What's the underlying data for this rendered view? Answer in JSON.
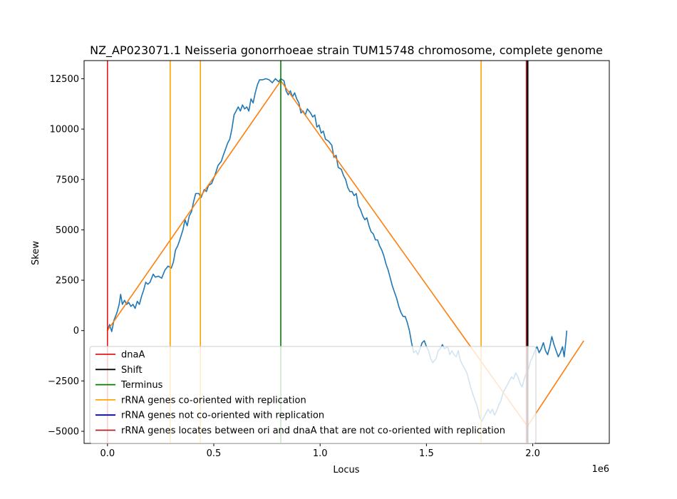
{
  "chart_data": {
    "type": "line",
    "title": "NZ_AP023071.1 Neisseria gonorrhoeae strain TUM15748 chromosome, complete genome",
    "xlabel": "Locus",
    "ylabel": "Skew",
    "x_offset_label": "1e6",
    "xlim": [
      -110000,
      2360000
    ],
    "ylim": [
      -5600,
      13400
    ],
    "x_ticks": [
      0,
      500000,
      1000000,
      1500000,
      2000000
    ],
    "x_tick_labels": [
      "0.0",
      "0.5",
      "1.0",
      "1.5",
      "2.0"
    ],
    "y_ticks": [
      -5000,
      -2500,
      0,
      2500,
      5000,
      7500,
      10000,
      12500
    ],
    "y_tick_labels": [
      "−5000",
      "−2500",
      "0",
      "2500",
      "5000",
      "7500",
      "10000",
      "12500"
    ],
    "grid": false,
    "legend_position": "lower-left",
    "colors": {
      "skew": "#1f77b4",
      "fit": "#ff7f0e",
      "dnaA": "#e41a1c",
      "shift": "#000000",
      "terminus": "#008000",
      "rrna_co": "#ffa500",
      "rrna_not_co": "#0000cd",
      "rrna_between": "#b22222"
    },
    "series": [
      {
        "key": "skew",
        "points": [
          [
            0,
            0
          ],
          [
            10000,
            300
          ],
          [
            20000,
            -50
          ],
          [
            30000,
            500
          ],
          [
            45000,
            900
          ],
          [
            55000,
            1300
          ],
          [
            62000,
            1800
          ],
          [
            70000,
            1300
          ],
          [
            80000,
            1500
          ],
          [
            90000,
            1300
          ],
          [
            100000,
            1400
          ],
          [
            110000,
            1200
          ],
          [
            120000,
            1300
          ],
          [
            130000,
            1100
          ],
          [
            140000,
            1450
          ],
          [
            150000,
            1300
          ],
          [
            160000,
            1700
          ],
          [
            170000,
            2000
          ],
          [
            180000,
            2400
          ],
          [
            190000,
            2300
          ],
          [
            200000,
            2400
          ],
          [
            215000,
            2800
          ],
          [
            225000,
            2650
          ],
          [
            240000,
            2700
          ],
          [
            255000,
            2600
          ],
          [
            270000,
            3000
          ],
          [
            285000,
            3200
          ],
          [
            300000,
            3100
          ],
          [
            310000,
            3400
          ],
          [
            320000,
            4000
          ],
          [
            330000,
            4200
          ],
          [
            340000,
            4500
          ],
          [
            355000,
            5000
          ],
          [
            365000,
            5500
          ],
          [
            375000,
            5200
          ],
          [
            385000,
            5700
          ],
          [
            395000,
            5900
          ],
          [
            405000,
            6400
          ],
          [
            415000,
            6800
          ],
          [
            430000,
            6800
          ],
          [
            440000,
            6600
          ],
          [
            455000,
            7000
          ],
          [
            465000,
            6900
          ],
          [
            475000,
            7200
          ],
          [
            490000,
            7300
          ],
          [
            505000,
            7700
          ],
          [
            520000,
            8200
          ],
          [
            535000,
            8400
          ],
          [
            545000,
            8700
          ],
          [
            555000,
            9000
          ],
          [
            565000,
            9300
          ],
          [
            575000,
            9500
          ],
          [
            585000,
            10000
          ],
          [
            595000,
            10700
          ],
          [
            605000,
            10900
          ],
          [
            615000,
            11100
          ],
          [
            625000,
            10900
          ],
          [
            635000,
            11200
          ],
          [
            645000,
            11000
          ],
          [
            655000,
            11100
          ],
          [
            665000,
            10900
          ],
          [
            675000,
            11500
          ],
          [
            685000,
            11300
          ],
          [
            695000,
            11800
          ],
          [
            705000,
            12200
          ],
          [
            715000,
            12450
          ],
          [
            730000,
            12450
          ],
          [
            745000,
            12500
          ],
          [
            760000,
            12450
          ],
          [
            775000,
            12300
          ],
          [
            790000,
            12500
          ],
          [
            805000,
            12350
          ],
          [
            815000,
            12500
          ],
          [
            830000,
            12400
          ],
          [
            840000,
            11900
          ],
          [
            850000,
            11700
          ],
          [
            860000,
            11900
          ],
          [
            870000,
            11600
          ],
          [
            880000,
            11800
          ],
          [
            890000,
            11500
          ],
          [
            900000,
            11300
          ],
          [
            910000,
            10800
          ],
          [
            920000,
            10900
          ],
          [
            930000,
            10700
          ],
          [
            940000,
            11000
          ],
          [
            955000,
            10800
          ],
          [
            965000,
            10600
          ],
          [
            975000,
            10700
          ],
          [
            985000,
            10100
          ],
          [
            995000,
            10200
          ],
          [
            1005000,
            9800
          ],
          [
            1015000,
            9900
          ],
          [
            1025000,
            9500
          ],
          [
            1040000,
            9400
          ],
          [
            1055000,
            9200
          ],
          [
            1065000,
            8600
          ],
          [
            1075000,
            8700
          ],
          [
            1085000,
            8100
          ],
          [
            1100000,
            8000
          ],
          [
            1110000,
            7700
          ],
          [
            1120000,
            7500
          ],
          [
            1130000,
            7100
          ],
          [
            1140000,
            6900
          ],
          [
            1150000,
            6900
          ],
          [
            1160000,
            6700
          ],
          [
            1170000,
            6800
          ],
          [
            1180000,
            6200
          ],
          [
            1190000,
            6000
          ],
          [
            1200000,
            5700
          ],
          [
            1210000,
            5500
          ],
          [
            1220000,
            5600
          ],
          [
            1230000,
            5200
          ],
          [
            1240000,
            4900
          ],
          [
            1250000,
            4800
          ],
          [
            1260000,
            4500
          ],
          [
            1270000,
            4500
          ],
          [
            1280000,
            4200
          ],
          [
            1290000,
            4000
          ],
          [
            1300000,
            3700
          ],
          [
            1310000,
            3300
          ],
          [
            1320000,
            3000
          ],
          [
            1330000,
            2600
          ],
          [
            1340000,
            2200
          ],
          [
            1350000,
            1900
          ],
          [
            1360000,
            1600
          ],
          [
            1370000,
            1200
          ],
          [
            1380000,
            900
          ],
          [
            1390000,
            700
          ],
          [
            1400000,
            700
          ],
          [
            1410000,
            400
          ],
          [
            1420000,
            0
          ],
          [
            1430000,
            -600
          ],
          [
            1440000,
            -1100
          ],
          [
            1450000,
            -1000
          ],
          [
            1460000,
            -1200
          ],
          [
            1470000,
            -900
          ],
          [
            1480000,
            -600
          ],
          [
            1490000,
            -500
          ],
          [
            1500000,
            -800
          ],
          [
            1510000,
            -1000
          ],
          [
            1520000,
            -1400
          ],
          [
            1530000,
            -1600
          ],
          [
            1545000,
            -1400
          ],
          [
            1555000,
            -1000
          ],
          [
            1565000,
            -900
          ],
          [
            1575000,
            -700
          ],
          [
            1585000,
            -900
          ],
          [
            1600000,
            -800
          ],
          [
            1610000,
            -1200
          ],
          [
            1620000,
            -1000
          ],
          [
            1630000,
            -1200
          ],
          [
            1640000,
            -1300
          ],
          [
            1650000,
            -1000
          ],
          [
            1660000,
            -1500
          ],
          [
            1670000,
            -1700
          ],
          [
            1680000,
            -1900
          ],
          [
            1690000,
            -2100
          ],
          [
            1700000,
            -2500
          ],
          [
            1710000,
            -2900
          ],
          [
            1720000,
            -3200
          ],
          [
            1730000,
            -3500
          ],
          [
            1740000,
            -3800
          ],
          [
            1750000,
            -4300
          ],
          [
            1760000,
            -4500
          ],
          [
            1770000,
            -4300
          ],
          [
            1780000,
            -4100
          ],
          [
            1790000,
            -3900
          ],
          [
            1800000,
            -4100
          ],
          [
            1810000,
            -3900
          ],
          [
            1820000,
            -4200
          ],
          [
            1830000,
            -4000
          ],
          [
            1840000,
            -3700
          ],
          [
            1850000,
            -3500
          ],
          [
            1860000,
            -3100
          ],
          [
            1870000,
            -2900
          ],
          [
            1880000,
            -2700
          ],
          [
            1890000,
            -2500
          ],
          [
            1900000,
            -2300
          ],
          [
            1910000,
            -2400
          ],
          [
            1920000,
            -2100
          ],
          [
            1930000,
            -2300
          ],
          [
            1940000,
            -2600
          ],
          [
            1950000,
            -2800
          ],
          [
            1960000,
            -2400
          ],
          [
            1970000,
            -2100
          ],
          [
            1980000,
            -1900
          ],
          [
            1990000,
            -1500
          ],
          [
            2000000,
            -1300
          ],
          [
            2010000,
            -1000
          ],
          [
            2020000,
            -800
          ],
          [
            2030000,
            -1100
          ],
          [
            2040000,
            -900
          ],
          [
            2050000,
            -600
          ],
          [
            2060000,
            -1000
          ],
          [
            2070000,
            -1200
          ],
          [
            2080000,
            -800
          ],
          [
            2090000,
            -300
          ],
          [
            2100000,
            -700
          ],
          [
            2110000,
            -1000
          ],
          [
            2120000,
            -1300
          ],
          [
            2130000,
            -1100
          ],
          [
            2140000,
            -800
          ],
          [
            2148000,
            -1300
          ],
          [
            2155000,
            -600
          ],
          [
            2160000,
            0
          ]
        ]
      },
      {
        "key": "fit",
        "points": [
          [
            0,
            0
          ],
          [
            815000,
            12400
          ],
          [
            1975000,
            -4750
          ],
          [
            2240000,
            -500
          ]
        ]
      }
    ],
    "vlines": [
      {
        "key": "dnaA",
        "x": 0
      },
      {
        "key": "rrna_co",
        "x": 295000
      },
      {
        "key": "rrna_co",
        "x": 437000
      },
      {
        "key": "terminus",
        "x": 815000
      },
      {
        "key": "rrna_co",
        "x": 1757000
      },
      {
        "key": "rrna_between",
        "x": 1970000
      },
      {
        "key": "shift",
        "x": 1976000
      }
    ],
    "legend": [
      {
        "key": "dnaA",
        "label": "dnaA"
      },
      {
        "key": "shift",
        "label": "Shift"
      },
      {
        "key": "terminus",
        "label": "Terminus"
      },
      {
        "key": "rrna_co",
        "label": "rRNA genes co-oriented with replication"
      },
      {
        "key": "rrna_not_co",
        "label": "rRNA genes not co-oriented with replication"
      },
      {
        "key": "rrna_between",
        "label": "rRNA genes locates between ori and dnaA that are not co-oriented with replication"
      }
    ]
  }
}
